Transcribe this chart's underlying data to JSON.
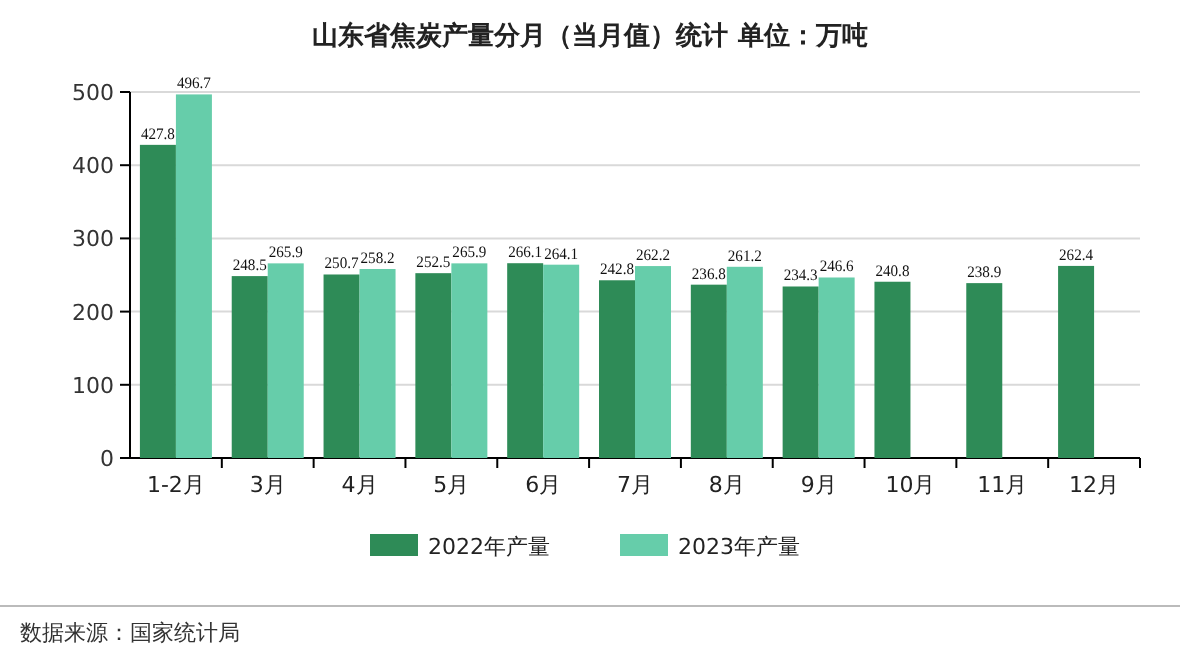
{
  "chart_data": {
    "type": "bar",
    "title": "山东省焦炭产量分月（当月值）统计  单位：万吨",
    "categories": [
      "1-2月",
      "3月",
      "4月",
      "5月",
      "6月",
      "7月",
      "8月",
      "9月",
      "10月",
      "11月",
      "12月"
    ],
    "series": [
      {
        "name": "2022年产量",
        "color": "#2e8b57",
        "values": [
          427.8,
          248.5,
          250.7,
          252.5,
          266.1,
          242.8,
          236.8,
          234.3,
          240.8,
          238.9,
          262.4
        ]
      },
      {
        "name": "2023年产量",
        "color": "#66cdaa",
        "values": [
          496.7,
          265.9,
          258.2,
          265.9,
          264.1,
          262.2,
          261.2,
          246.6,
          null,
          null,
          null
        ]
      }
    ],
    "ylim": [
      0,
      500
    ],
    "yticks": [
      0,
      100,
      200,
      300,
      400,
      500
    ],
    "grid": "y",
    "legend": "bottom",
    "data_labels": true,
    "annotations": [
      "数据来源：国家统计局"
    ]
  }
}
